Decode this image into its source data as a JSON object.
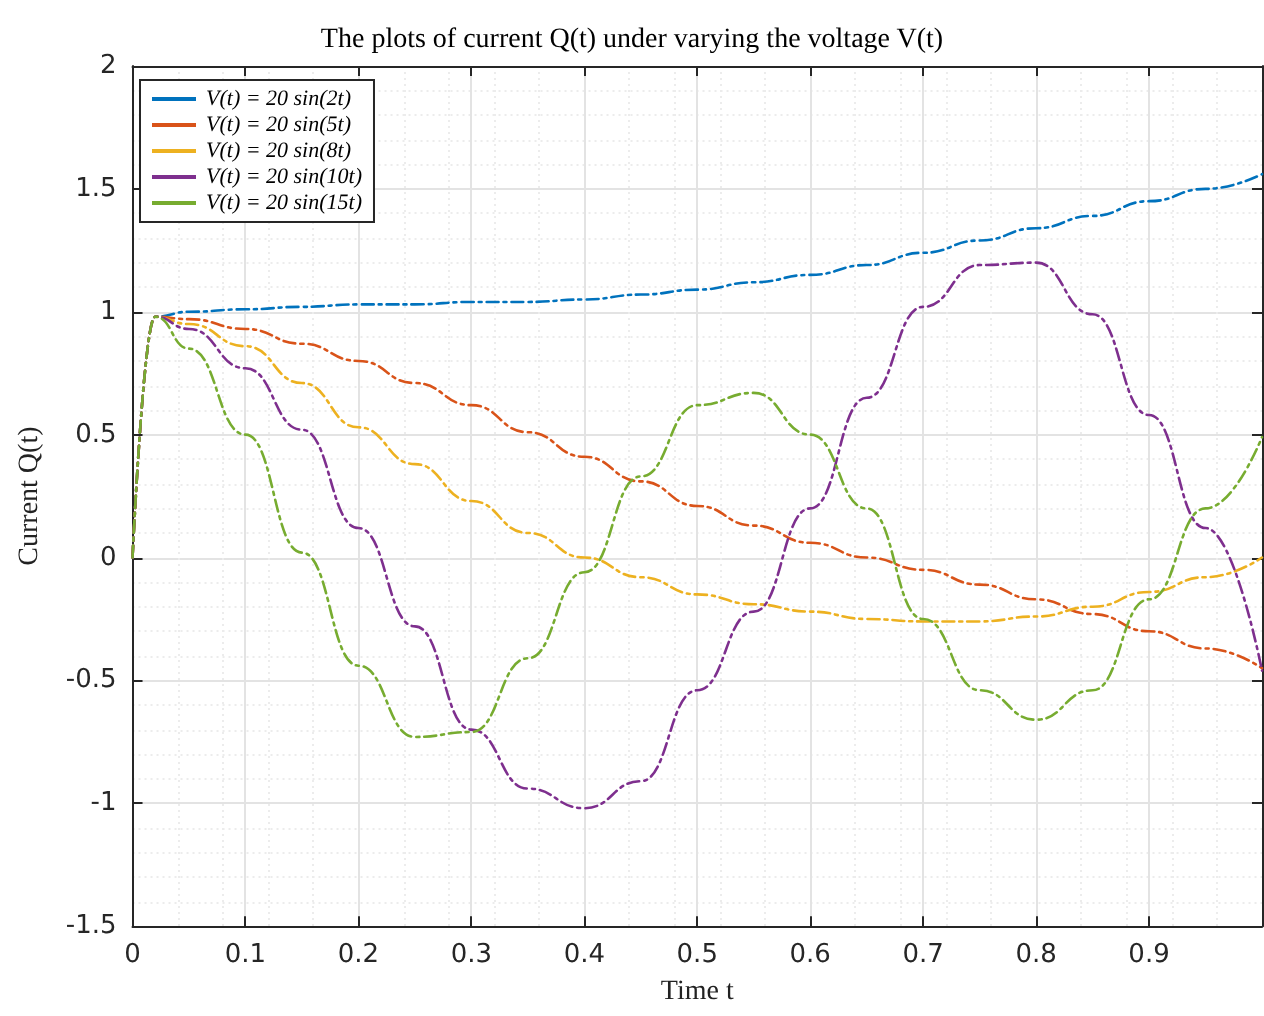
{
  "chart_data": {
    "type": "line",
    "title": "The plots of current Q(t) under varying the voltage V(t)",
    "xlabel": "Time t",
    "ylabel": "Current Q(t)",
    "x": [
      0,
      0.02,
      0.05,
      0.1,
      0.15,
      0.2,
      0.25,
      0.3,
      0.35,
      0.4,
      0.45,
      0.5,
      0.55,
      0.6,
      0.65,
      0.7,
      0.75,
      0.8,
      0.85,
      0.9,
      0.95,
      1.0
    ],
    "series": [
      {
        "name": "V(t) = 20 sin(2t)",
        "color": "#0072bd",
        "values": [
          0,
          0.98,
          1.0,
          1.01,
          1.02,
          1.03,
          1.03,
          1.04,
          1.04,
          1.05,
          1.07,
          1.09,
          1.12,
          1.15,
          1.19,
          1.24,
          1.29,
          1.34,
          1.39,
          1.45,
          1.5,
          1.56
        ]
      },
      {
        "name": "V(t) = 20 sin(5t)",
        "color": "#d95319",
        "values": [
          0,
          0.98,
          0.97,
          0.93,
          0.87,
          0.8,
          0.71,
          0.62,
          0.51,
          0.41,
          0.31,
          0.21,
          0.13,
          0.06,
          0.0,
          -0.05,
          -0.11,
          -0.17,
          -0.23,
          -0.3,
          -0.37,
          -0.45
        ]
      },
      {
        "name": "V(t) = 20 sin(8t)",
        "color": "#edb120",
        "values": [
          0,
          0.98,
          0.95,
          0.86,
          0.71,
          0.53,
          0.38,
          0.23,
          0.1,
          0.0,
          -0.08,
          -0.15,
          -0.19,
          -0.22,
          -0.25,
          -0.26,
          -0.26,
          -0.24,
          -0.2,
          -0.14,
          -0.08,
          0.0
        ]
      },
      {
        "name": "V(t) = 20 sin(10t)",
        "color": "#7e2f8e",
        "values": [
          0,
          0.98,
          0.93,
          0.77,
          0.52,
          0.12,
          -0.28,
          -0.7,
          -0.94,
          -1.02,
          -0.91,
          -0.54,
          -0.22,
          0.2,
          0.65,
          1.02,
          1.19,
          1.2,
          0.99,
          0.58,
          0.12,
          -0.46
        ]
      },
      {
        "name": "V(t) = 20 sin(15t)",
        "color": "#77ac30",
        "values": [
          0,
          0.98,
          0.85,
          0.5,
          0.02,
          -0.44,
          -0.73,
          -0.71,
          -0.41,
          -0.06,
          0.33,
          0.62,
          0.67,
          0.5,
          0.2,
          -0.25,
          -0.54,
          -0.66,
          -0.54,
          -0.17,
          0.2,
          0.49
        ]
      }
    ],
    "xlim": [
      0,
      1
    ],
    "xticks": [
      0,
      0.1,
      0.2,
      0.3,
      0.4,
      0.5,
      0.6,
      0.7,
      0.8,
      0.9
    ],
    "ylim": [
      -1.5,
      2
    ],
    "yticks": [
      -1.5,
      -1,
      -0.5,
      0,
      0.5,
      1,
      1.5,
      2
    ],
    "grid": true,
    "legend": "top left",
    "marker": "none",
    "line_style": "dashed"
  }
}
